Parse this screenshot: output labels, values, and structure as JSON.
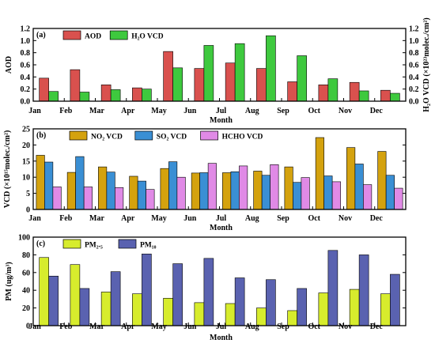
{
  "chart_data": [
    {
      "type": "bar",
      "panel": "(a)",
      "categories": [
        "Jan",
        "Feb",
        "Mar",
        "Apr",
        "May",
        "Jun",
        "Jul",
        "Aug",
        "Sep",
        "Oct",
        "Nov",
        "Dec"
      ],
      "xlabel": "Month",
      "ylabel": "AOD",
      "ylabel_right": "H₂O VCD (×10²³molec./cm²)",
      "ylim": [
        0,
        1.2
      ],
      "yticks": [
        "0.0",
        "0.2",
        "0.4",
        "0.6",
        "0.8",
        "1.0",
        "1.2"
      ],
      "legend_position": "top-left",
      "series": [
        {
          "name": "AOD",
          "legend": "AOD",
          "color": "#d9514e",
          "values": [
            0.38,
            0.52,
            0.27,
            0.22,
            0.82,
            0.54,
            0.63,
            0.54,
            0.32,
            0.27,
            0.31,
            0.18
          ]
        },
        {
          "name": "H2O VCD",
          "legend": "H₂O VCD",
          "color": "#3ec93e",
          "values": [
            0.16,
            0.15,
            0.19,
            0.2,
            0.55,
            0.92,
            0.95,
            1.08,
            0.75,
            0.37,
            0.17,
            0.13
          ]
        }
      ]
    },
    {
      "type": "bar",
      "panel": "(b)",
      "categories": [
        "Jan",
        "Feb",
        "Mar",
        "Apr",
        "May",
        "Jun",
        "Jul",
        "Aug",
        "Sep",
        "Oct",
        "Nov",
        "Dec"
      ],
      "xlabel": "Month",
      "ylabel": "VCD (×10¹⁵molec./cm²)",
      "ylim": [
        0,
        25
      ],
      "yticks": [
        "0",
        "5",
        "10",
        "15",
        "20",
        "25"
      ],
      "legend_position": "top",
      "series": [
        {
          "name": "NO2 VCD",
          "legend": "NO₂ VCD",
          "color": "#d4a20e",
          "values": [
            16.8,
            11.5,
            13.2,
            10.3,
            12.7,
            11.3,
            11.4,
            11.9,
            13.2,
            22.3,
            19.2,
            18.0
          ]
        },
        {
          "name": "SO2 VCD",
          "legend": "SO₂ VCD",
          "color": "#3a8fd4",
          "values": [
            14.7,
            16.4,
            11.6,
            8.8,
            14.8,
            11.4,
            11.7,
            10.6,
            8.4,
            10.4,
            14.1,
            10.6
          ]
        },
        {
          "name": "HCHO VCD",
          "legend": "HCHO VCD",
          "color": "#e08ae6",
          "values": [
            7.0,
            7.0,
            6.8,
            6.2,
            10.0,
            14.3,
            13.5,
            13.9,
            9.9,
            8.6,
            7.7,
            6.6
          ]
        }
      ]
    },
    {
      "type": "bar",
      "panel": "(c)",
      "categories": [
        "Jan",
        "Feb",
        "Mar",
        "Apr",
        "May",
        "Jun",
        "Jul",
        "Aug",
        "Sep",
        "Oct",
        "Nov",
        "Dec"
      ],
      "xlabel": "Month",
      "ylabel": "PM (ug/m³)",
      "ylim": [
        0,
        100
      ],
      "yticks": [
        "0",
        "20",
        "40",
        "60",
        "80",
        "100"
      ],
      "legend_position": "top-left",
      "series": [
        {
          "name": "PM2.5",
          "legend": "PM₂.₅",
          "color": "#d7ec2d",
          "values": [
            77,
            69,
            38,
            36,
            31,
            26,
            25,
            20,
            17,
            37,
            41,
            36
          ]
        },
        {
          "name": "PM10",
          "legend": "PM₁₀",
          "color": "#5a62b0",
          "values": [
            56,
            42,
            61,
            81,
            70,
            76,
            54,
            52,
            42,
            85,
            80,
            58
          ]
        }
      ]
    }
  ],
  "right_yticks_a": [
    "0.0",
    "0.2",
    "0.4",
    "0.6",
    "0.8",
    "1.0",
    "1.2"
  ]
}
